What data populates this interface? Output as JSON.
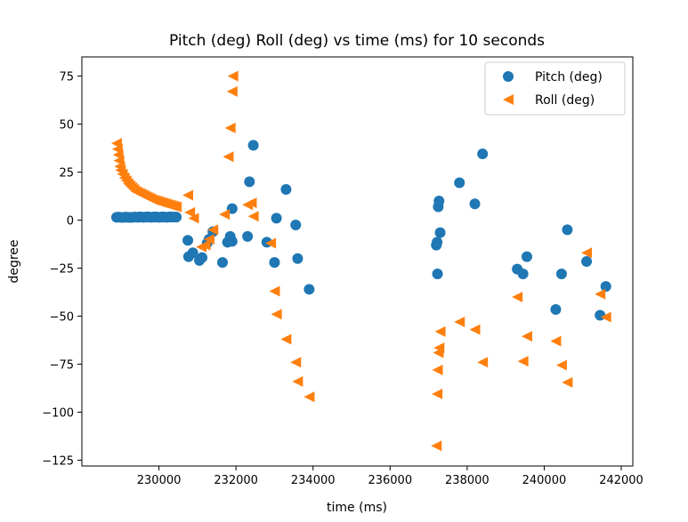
{
  "chart_data": {
    "type": "scatter",
    "title": "Pitch (deg) Roll (deg) vs time (ms) for 10 seconds",
    "xlabel": "time (ms)",
    "ylabel": "degree",
    "xlim": [
      228000,
      242300
    ],
    "ylim": [
      -128,
      85
    ],
    "xticks": [
      230000,
      232000,
      234000,
      236000,
      238000,
      240000,
      242000
    ],
    "yticks": [
      75,
      50,
      25,
      0,
      -25,
      -50,
      -75,
      -100,
      -125
    ],
    "legend_position": "upper right",
    "series": [
      {
        "name": "Pitch (deg)",
        "marker": "circle",
        "color": "#1f77b4",
        "points": [
          [
            228900,
            1.5
          ],
          [
            228950,
            1.6
          ],
          [
            229000,
            1.5
          ],
          [
            229050,
            1.4
          ],
          [
            229100,
            1.5
          ],
          [
            229150,
            1.6
          ],
          [
            229200,
            1.5
          ],
          [
            229250,
            1.4
          ],
          [
            229300,
            1.5
          ],
          [
            229350,
            1.6
          ],
          [
            229400,
            1.6
          ],
          [
            229450,
            1.5
          ],
          [
            229500,
            1.7
          ],
          [
            229550,
            1.6
          ],
          [
            229600,
            1.5
          ],
          [
            229650,
            1.6
          ],
          [
            229700,
            1.7
          ],
          [
            229750,
            1.6
          ],
          [
            229800,
            1.5
          ],
          [
            229850,
            1.6
          ],
          [
            229900,
            1.7
          ],
          [
            229950,
            1.6
          ],
          [
            230000,
            1.5
          ],
          [
            230050,
            1.6
          ],
          [
            230100,
            1.7
          ],
          [
            230150,
            1.6
          ],
          [
            230200,
            1.5
          ],
          [
            230250,
            1.6
          ],
          [
            230300,
            1.7
          ],
          [
            230350,
            1.6
          ],
          [
            230400,
            1.6
          ],
          [
            230450,
            1.6
          ],
          [
            230750,
            -10.5
          ],
          [
            230770,
            -19
          ],
          [
            230880,
            -17
          ],
          [
            231050,
            -21
          ],
          [
            231120,
            -19.5
          ],
          [
            231250,
            -12
          ],
          [
            231300,
            -10
          ],
          [
            231400,
            -6
          ],
          [
            231650,
            -22
          ],
          [
            231780,
            -11.5
          ],
          [
            231850,
            -8.5
          ],
          [
            231900,
            -11
          ],
          [
            231900,
            6
          ],
          [
            232300,
            -8.5
          ],
          [
            232350,
            20
          ],
          [
            232450,
            39
          ],
          [
            232800,
            -11.5
          ],
          [
            233000,
            -22
          ],
          [
            233050,
            1
          ],
          [
            233300,
            16
          ],
          [
            233550,
            -2.5
          ],
          [
            233600,
            -20
          ],
          [
            233900,
            -36
          ],
          [
            237200,
            -13
          ],
          [
            237220,
            -11.5
          ],
          [
            237230,
            -28
          ],
          [
            237250,
            7
          ],
          [
            237270,
            10
          ],
          [
            237300,
            -6.5
          ],
          [
            237800,
            19.5
          ],
          [
            238200,
            8.5
          ],
          [
            238400,
            34.5
          ],
          [
            239300,
            -25.5
          ],
          [
            239450,
            -28
          ],
          [
            239550,
            -19
          ],
          [
            240300,
            -46.5
          ],
          [
            240450,
            -28
          ],
          [
            240600,
            -5
          ],
          [
            241100,
            -21.5
          ],
          [
            241450,
            -49.5
          ],
          [
            241600,
            -34.5
          ]
        ]
      },
      {
        "name": "Roll (deg)",
        "marker": "triangle-left",
        "color": "#ff7f0e",
        "points": [
          [
            228900,
            40
          ],
          [
            228920,
            37
          ],
          [
            228940,
            34
          ],
          [
            228960,
            31
          ],
          [
            228980,
            28
          ],
          [
            229000,
            26
          ],
          [
            229050,
            24
          ],
          [
            229100,
            22
          ],
          [
            229150,
            20.5
          ],
          [
            229200,
            19
          ],
          [
            229250,
            18
          ],
          [
            229300,
            17
          ],
          [
            229350,
            16
          ],
          [
            229400,
            15
          ],
          [
            229450,
            14.5
          ],
          [
            229500,
            14
          ],
          [
            229550,
            13.5
          ],
          [
            229600,
            13
          ],
          [
            229650,
            12.5
          ],
          [
            229700,
            12
          ],
          [
            229750,
            11.5
          ],
          [
            229800,
            11
          ],
          [
            229850,
            10.5
          ],
          [
            229900,
            10.2
          ],
          [
            229950,
            10
          ],
          [
            230000,
            9.6
          ],
          [
            230050,
            9.3
          ],
          [
            230100,
            9
          ],
          [
            230150,
            8.7
          ],
          [
            230200,
            8.4
          ],
          [
            230250,
            8.1
          ],
          [
            230300,
            7.8
          ],
          [
            230350,
            7.5
          ],
          [
            230400,
            7.2
          ],
          [
            230450,
            6.9
          ],
          [
            230750,
            13
          ],
          [
            230800,
            4
          ],
          [
            230900,
            1
          ],
          [
            231100,
            -14
          ],
          [
            231200,
            -13
          ],
          [
            231300,
            -10
          ],
          [
            231400,
            -5
          ],
          [
            231700,
            3
          ],
          [
            231800,
            33
          ],
          [
            231850,
            48
          ],
          [
            231900,
            67
          ],
          [
            231920,
            75
          ],
          [
            232300,
            8
          ],
          [
            232400,
            9
          ],
          [
            232450,
            2
          ],
          [
            232900,
            -12
          ],
          [
            233000,
            -37
          ],
          [
            233050,
            -49
          ],
          [
            233300,
            -62
          ],
          [
            233550,
            -74
          ],
          [
            233600,
            -84
          ],
          [
            233900,
            -92
          ],
          [
            237200,
            -117.5
          ],
          [
            237220,
            -90.5
          ],
          [
            237230,
            -78
          ],
          [
            237250,
            -69
          ],
          [
            237270,
            -66.5
          ],
          [
            237300,
            -58
          ],
          [
            237800,
            -53
          ],
          [
            238200,
            -57
          ],
          [
            238400,
            -74
          ],
          [
            239300,
            -40
          ],
          [
            239450,
            -73.5
          ],
          [
            239550,
            -60.5
          ],
          [
            240300,
            -63
          ],
          [
            240450,
            -75.5
          ],
          [
            240600,
            -84.5
          ],
          [
            241100,
            -17
          ],
          [
            241450,
            -38.5
          ],
          [
            241600,
            -50.5
          ]
        ]
      }
    ]
  }
}
